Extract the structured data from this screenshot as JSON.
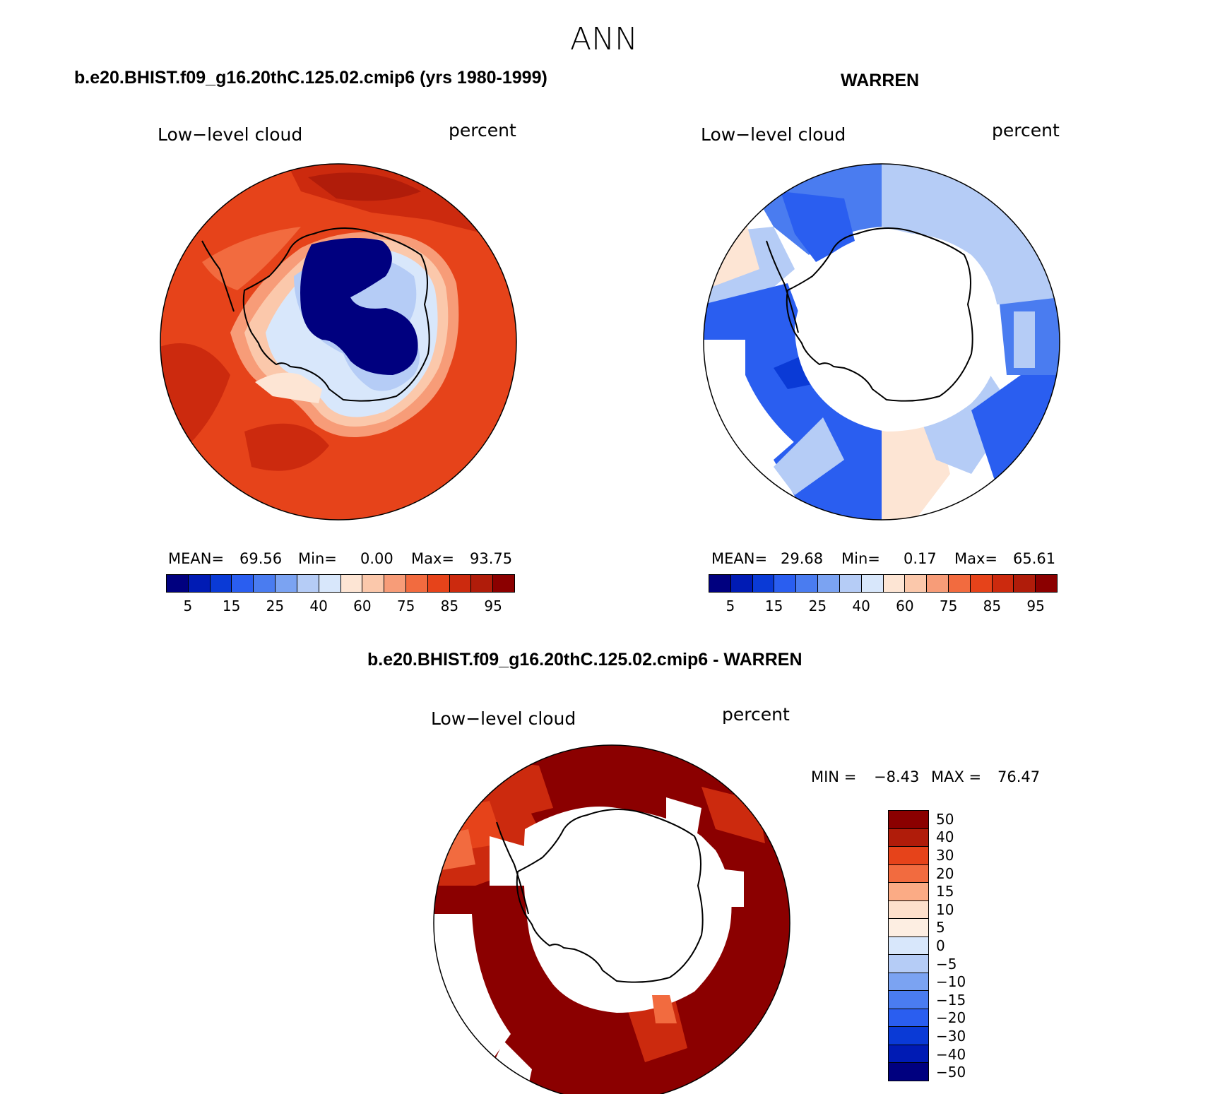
{
  "title": "ANN",
  "panel1": {
    "case": "b.e20.BHIST.f09_g16.20thC.125.02.cmip6 (yrs 1980-1999)",
    "variable": "Low−level cloud",
    "units": "percent",
    "stats": {
      "mean_label": "MEAN=",
      "mean": "69.56",
      "min_label": "Min=",
      "min": "0.00",
      "max_label": "Max=",
      "max": "93.75"
    },
    "colorbar_ticks": [
      "5",
      "15",
      "25",
      "40",
      "60",
      "75",
      "85",
      "95"
    ]
  },
  "panel2": {
    "case": "WARREN",
    "variable": "Low−level cloud",
    "units": "percent",
    "stats": {
      "mean_label": "MEAN=",
      "mean": "29.68",
      "min_label": "Min=",
      "min": "0.17",
      "max_label": "Max=",
      "max": "65.61"
    },
    "colorbar_ticks": [
      "5",
      "15",
      "25",
      "40",
      "60",
      "75",
      "85",
      "95"
    ]
  },
  "panel3": {
    "case": "b.e20.BHIST.f09_g16.20thC.125.02.cmip6 - WARREN",
    "variable": "Low−level cloud",
    "units": "percent",
    "stats": {
      "min_label": "MIN =",
      "min": "−8.43",
      "max_label": "MAX =",
      "max": "76.47"
    },
    "colorbar_ticks": [
      "50",
      "40",
      "30",
      "20",
      "15",
      "10",
      "5",
      "0",
      "−5",
      "−10",
      "−15",
      "−20",
      "−30",
      "−40",
      "−50"
    ]
  },
  "colors": {
    "seq_scale": [
      "#00007f",
      "#001bb4",
      "#0a3ad6",
      "#2a5ef0",
      "#4a7cf0",
      "#7ba3f2",
      "#b5ccf6",
      "#d8e7fb",
      "#fde5d4",
      "#fbc8ab",
      "#f79c78",
      "#f26b3f",
      "#e6431a",
      "#cc2a0e",
      "#b01c0a",
      "#8b0000"
    ],
    "diff_scale": [
      "#8b0000",
      "#b01c0a",
      "#e6431a",
      "#f26b3f",
      "#fbab85",
      "#fde0cc",
      "#fdeee2",
      "#d8e7fb",
      "#b5ccf6",
      "#7ba3f2",
      "#4a7cf0",
      "#2a5ef0",
      "#0a3ad6",
      "#001bb4",
      "#00007f"
    ]
  }
}
